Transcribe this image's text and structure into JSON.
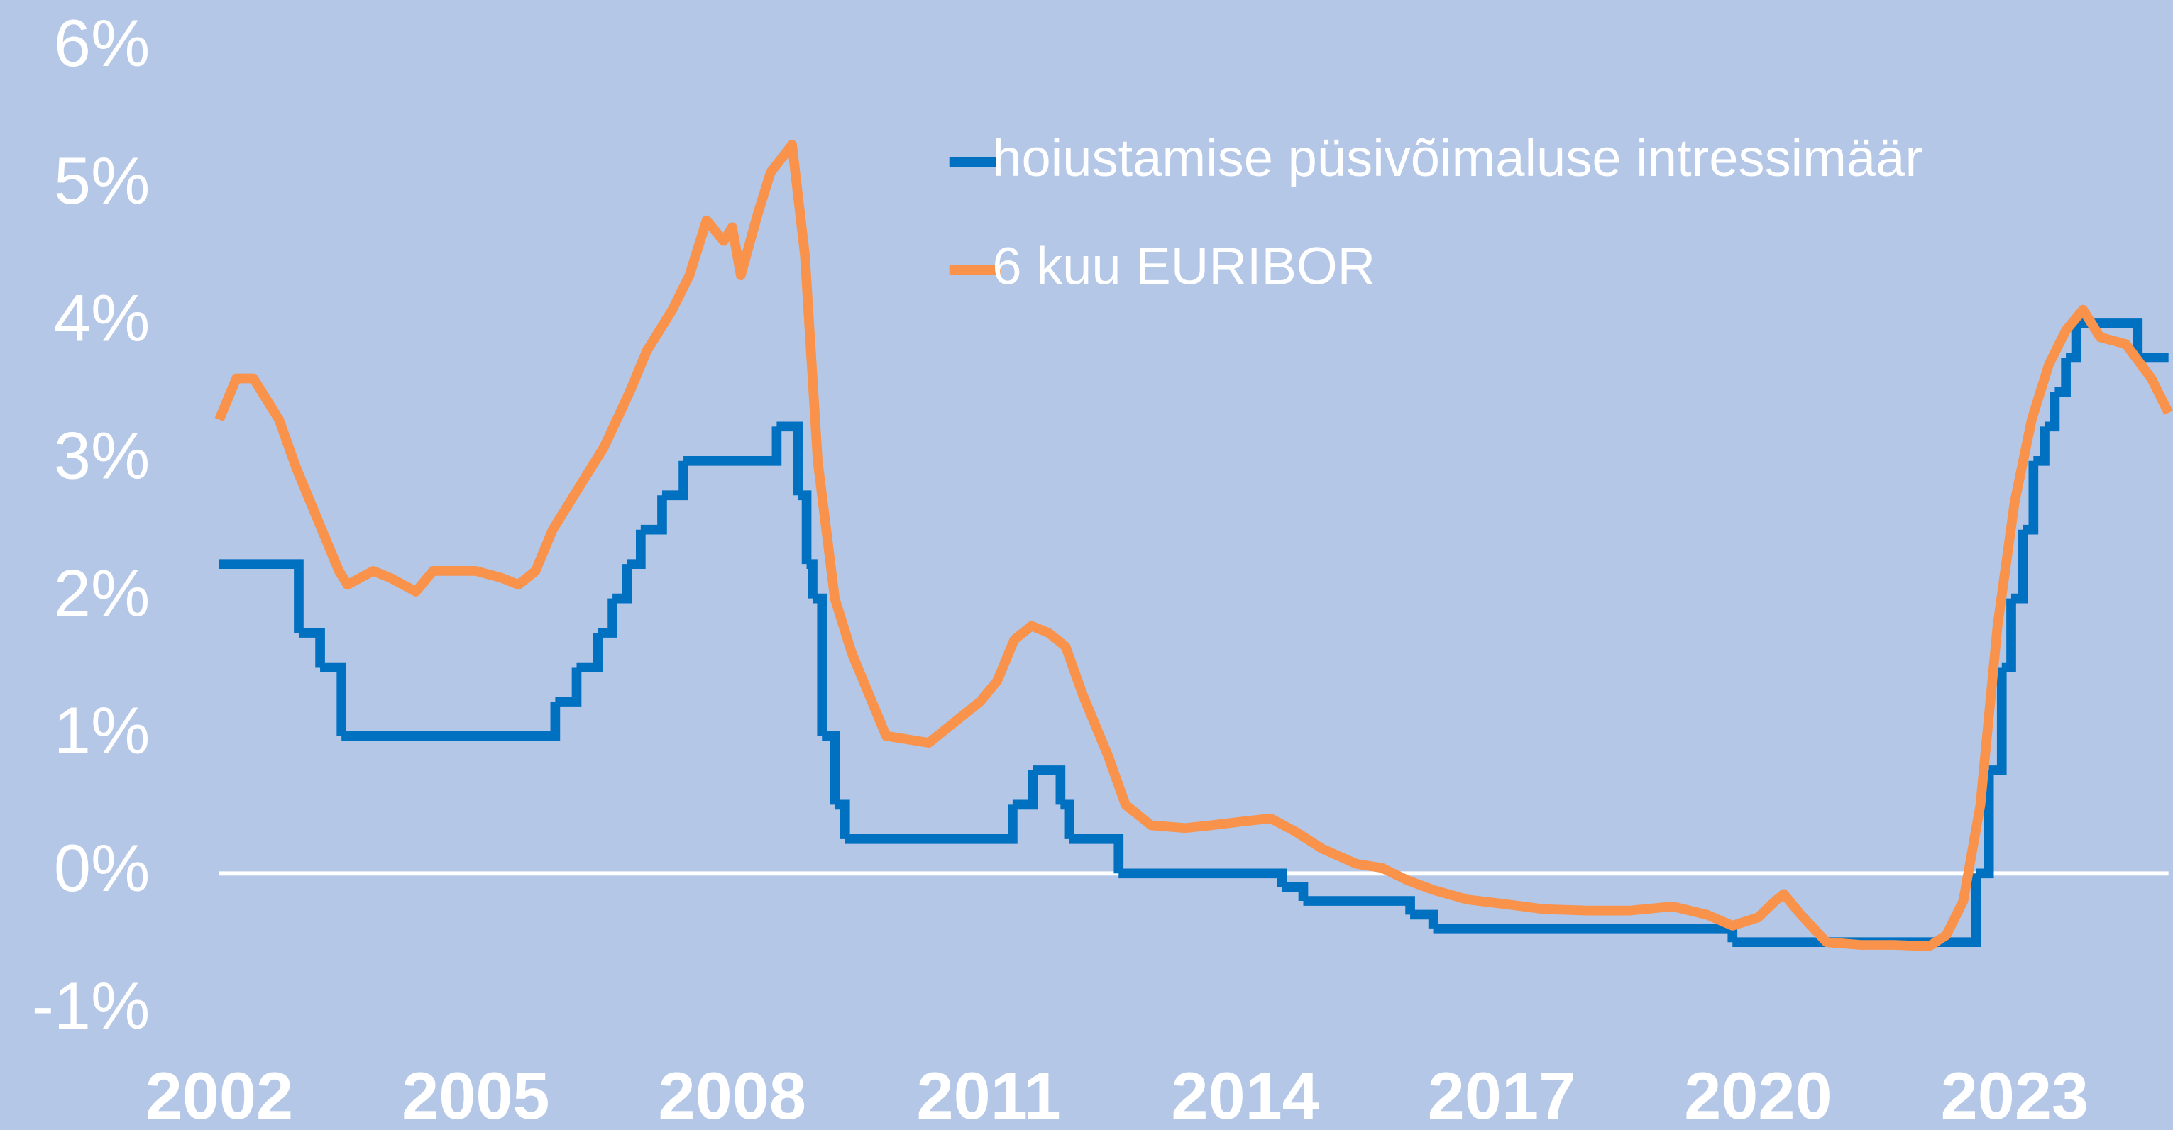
{
  "chart_data": {
    "type": "line",
    "xlim": [
      2002,
      2024.8
    ],
    "xticks": [
      2002,
      2005,
      2008,
      2011,
      2014,
      2017,
      2020,
      2023
    ],
    "ylim": [
      -1,
      6
    ],
    "yticks": [
      {
        "value": -1,
        "label": "-1%"
      },
      {
        "value": 0,
        "label": "0%"
      },
      {
        "value": 1,
        "label": "1%"
      },
      {
        "value": 2,
        "label": "2%"
      },
      {
        "value": 3,
        "label": "3%"
      },
      {
        "value": 4,
        "label": "4%"
      },
      {
        "value": 5,
        "label": "5%"
      },
      {
        "value": 6,
        "label": "6%"
      }
    ],
    "zero_line": true,
    "legend": "upper right",
    "series": [
      {
        "name": "hoiustamise püsivõimaluse intressimäär",
        "color": "#0070c0",
        "step": true,
        "x": [
          2002.0,
          2002.93,
          2003.18,
          2003.43,
          2005.93,
          2006.18,
          2006.43,
          2006.6,
          2006.77,
          2006.93,
          2007.18,
          2007.43,
          2008.52,
          2008.77,
          2008.87,
          2008.94,
          2009.05,
          2009.2,
          2009.32,
          2011.28,
          2011.52,
          2011.84,
          2011.94,
          2012.52,
          2014.43,
          2014.68,
          2015.93,
          2016.2,
          2019.7,
          2022.55,
          2022.7,
          2022.85,
          2022.96,
          2023.1,
          2023.22,
          2023.35,
          2023.47,
          2023.6,
          2023.72,
          2024.44
        ],
        "values": [
          2.25,
          1.75,
          1.5,
          1.0,
          1.25,
          1.5,
          1.75,
          2.0,
          2.25,
          2.5,
          2.75,
          3.0,
          3.25,
          2.75,
          2.25,
          2.0,
          1.0,
          0.5,
          0.25,
          0.5,
          0.75,
          0.5,
          0.25,
          0.0,
          -0.1,
          -0.2,
          -0.3,
          -0.4,
          -0.5,
          0.0,
          0.75,
          1.5,
          2.0,
          2.5,
          3.0,
          3.25,
          3.5,
          3.75,
          4.0,
          3.75
        ]
      },
      {
        "name": "6 kuu EURIBOR",
        "color": "#f9924a",
        "x": [
          2002.0,
          2002.2,
          2002.4,
          2002.7,
          2002.9,
          2003.2,
          2003.4,
          2003.5,
          2003.8,
          2004.0,
          2004.3,
          2004.5,
          2004.8,
          2005.0,
          2005.3,
          2005.5,
          2005.7,
          2005.9,
          2006.2,
          2006.5,
          2006.8,
          2007.0,
          2007.3,
          2007.5,
          2007.7,
          2007.9,
          2008.0,
          2008.1,
          2008.3,
          2008.45,
          2008.7,
          2008.85,
          2009.0,
          2009.2,
          2009.4,
          2009.6,
          2009.8,
          2010.0,
          2010.3,
          2010.5,
          2010.7,
          2010.9,
          2011.1,
          2011.3,
          2011.5,
          2011.7,
          2011.9,
          2012.1,
          2012.4,
          2012.6,
          2012.9,
          2013.3,
          2013.6,
          2014.0,
          2014.3,
          2014.6,
          2014.9,
          2015.3,
          2015.6,
          2015.9,
          2016.2,
          2016.6,
          2017.0,
          2017.5,
          2018.0,
          2018.5,
          2019.0,
          2019.4,
          2019.7,
          2020.0,
          2020.2,
          2020.3,
          2020.5,
          2020.8,
          2021.2,
          2021.6,
          2022.0,
          2022.2,
          2022.4,
          2022.6,
          2022.8,
          2023.0,
          2023.2,
          2023.4,
          2023.6,
          2023.8,
          2024.0,
          2024.3,
          2024.6,
          2024.8
        ],
        "values": [
          3.3,
          3.6,
          3.6,
          3.3,
          2.95,
          2.5,
          2.2,
          2.1,
          2.2,
          2.15,
          2.05,
          2.2,
          2.2,
          2.2,
          2.15,
          2.1,
          2.2,
          2.5,
          2.8,
          3.1,
          3.5,
          3.8,
          4.1,
          4.35,
          4.75,
          4.6,
          4.7,
          4.35,
          4.8,
          5.1,
          5.3,
          4.5,
          3.0,
          2.0,
          1.6,
          1.3,
          1.0,
          0.98,
          0.95,
          1.05,
          1.15,
          1.25,
          1.4,
          1.7,
          1.8,
          1.75,
          1.65,
          1.3,
          0.85,
          0.5,
          0.35,
          0.33,
          0.35,
          0.38,
          0.4,
          0.3,
          0.18,
          0.07,
          0.04,
          -0.05,
          -0.12,
          -0.19,
          -0.22,
          -0.26,
          -0.27,
          -0.27,
          -0.24,
          -0.3,
          -0.38,
          -0.32,
          -0.2,
          -0.15,
          -0.3,
          -0.5,
          -0.52,
          -0.52,
          -0.53,
          -0.45,
          -0.2,
          0.5,
          1.8,
          2.7,
          3.3,
          3.7,
          3.95,
          4.1,
          3.9,
          3.85,
          3.6,
          3.35
        ]
      }
    ]
  }
}
